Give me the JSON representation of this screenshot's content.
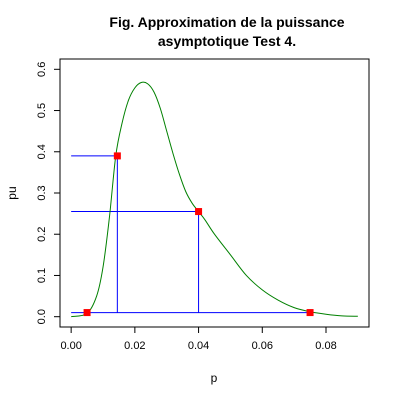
{
  "chart_data": {
    "type": "line",
    "title_line1": "Fig. Approximation de la puissance",
    "title_line2": "asymptotique Test 4.",
    "xlabel": "p",
    "ylabel": "pu",
    "xlim": [
      -0.0035,
      0.0935
    ],
    "ylim": [
      -0.025,
      0.625
    ],
    "x_ticks": [
      "0.00",
      "0.02",
      "0.04",
      "0.06",
      "0.08"
    ],
    "y_ticks": [
      "0.0",
      "0.1",
      "0.2",
      "0.3",
      "0.4",
      "0.5",
      "0.6"
    ],
    "curve": {
      "color": "#008000",
      "points": [
        [
          0.0,
          0.0
        ],
        [
          0.005,
          0.008
        ],
        [
          0.008,
          0.05
        ],
        [
          0.01,
          0.12
        ],
        [
          0.012,
          0.24
        ],
        [
          0.014,
          0.39
        ],
        [
          0.016,
          0.47
        ],
        [
          0.018,
          0.525
        ],
        [
          0.02,
          0.555
        ],
        [
          0.022,
          0.568
        ],
        [
          0.024,
          0.565
        ],
        [
          0.026,
          0.545
        ],
        [
          0.028,
          0.505
        ],
        [
          0.03,
          0.45
        ],
        [
          0.032,
          0.395
        ],
        [
          0.034,
          0.345
        ],
        [
          0.036,
          0.303
        ],
        [
          0.038,
          0.275
        ],
        [
          0.04,
          0.255
        ],
        [
          0.042,
          0.235
        ],
        [
          0.045,
          0.2
        ],
        [
          0.05,
          0.15
        ],
        [
          0.055,
          0.1
        ],
        [
          0.06,
          0.065
        ],
        [
          0.065,
          0.04
        ],
        [
          0.07,
          0.022
        ],
        [
          0.075,
          0.012
        ],
        [
          0.08,
          0.006
        ],
        [
          0.085,
          0.002
        ],
        [
          0.09,
          0.001
        ]
      ]
    },
    "reference_lines_color": "#0000ff",
    "marker_color": "#ff0000",
    "marked_points": [
      {
        "x": 0.005,
        "y": 0.01
      },
      {
        "x": 0.0145,
        "y": 0.39
      },
      {
        "x": 0.04,
        "y": 0.255
      },
      {
        "x": 0.075,
        "y": 0.01
      }
    ],
    "horizontal_lines": [
      {
        "x_from": 0.0,
        "x_to": 0.0145,
        "y": 0.39
      },
      {
        "x_from": 0.0,
        "x_to": 0.04,
        "y": 0.255
      },
      {
        "x_from": 0.0,
        "x_to": 0.075,
        "y": 0.01
      }
    ],
    "vertical_lines": [
      {
        "x": 0.0145,
        "y_from": 0.01,
        "y_to": 0.39
      },
      {
        "x": 0.04,
        "y_from": 0.01,
        "y_to": 0.255
      }
    ],
    "grid": false,
    "legend": "none"
  }
}
